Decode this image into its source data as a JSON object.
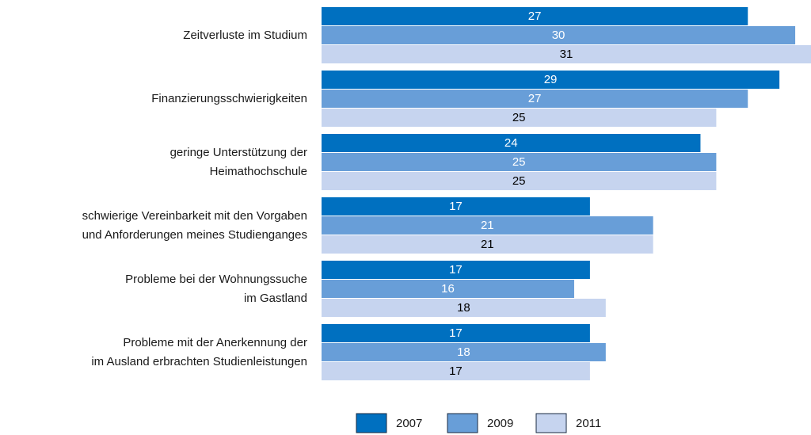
{
  "chart_data": {
    "type": "hbar",
    "categories": [
      [
        "Zeitverluste im Studium"
      ],
      [
        "Finanzierungsschwierigkeiten"
      ],
      [
        "geringe Unterstützung der",
        "Heimathochschule"
      ],
      [
        "schwierige Vereinbarkeit mit den Vorgaben",
        "und  Anforderungen  meines Studienganges"
      ],
      [
        "Probleme bei der Wohnungssuche",
        "im Gastland"
      ],
      [
        "Probleme mit der Anerkennung der",
        "im Ausland erbrachten Studienleistungen"
      ]
    ],
    "series": [
      {
        "name": "2007",
        "color": "#0070c0",
        "label_color": "#ffffff",
        "values": [
          27,
          29,
          24,
          17,
          17,
          17
        ]
      },
      {
        "name": "2009",
        "color": "#689ed8",
        "label_color": "#ffffff",
        "values": [
          30,
          27,
          25,
          21,
          16,
          18
        ]
      },
      {
        "name": "2011",
        "color": "#c6d4ef",
        "label_color": "#000000",
        "values": [
          31,
          25,
          25,
          21,
          18,
          17
        ]
      }
    ],
    "legend": "bottom"
  }
}
